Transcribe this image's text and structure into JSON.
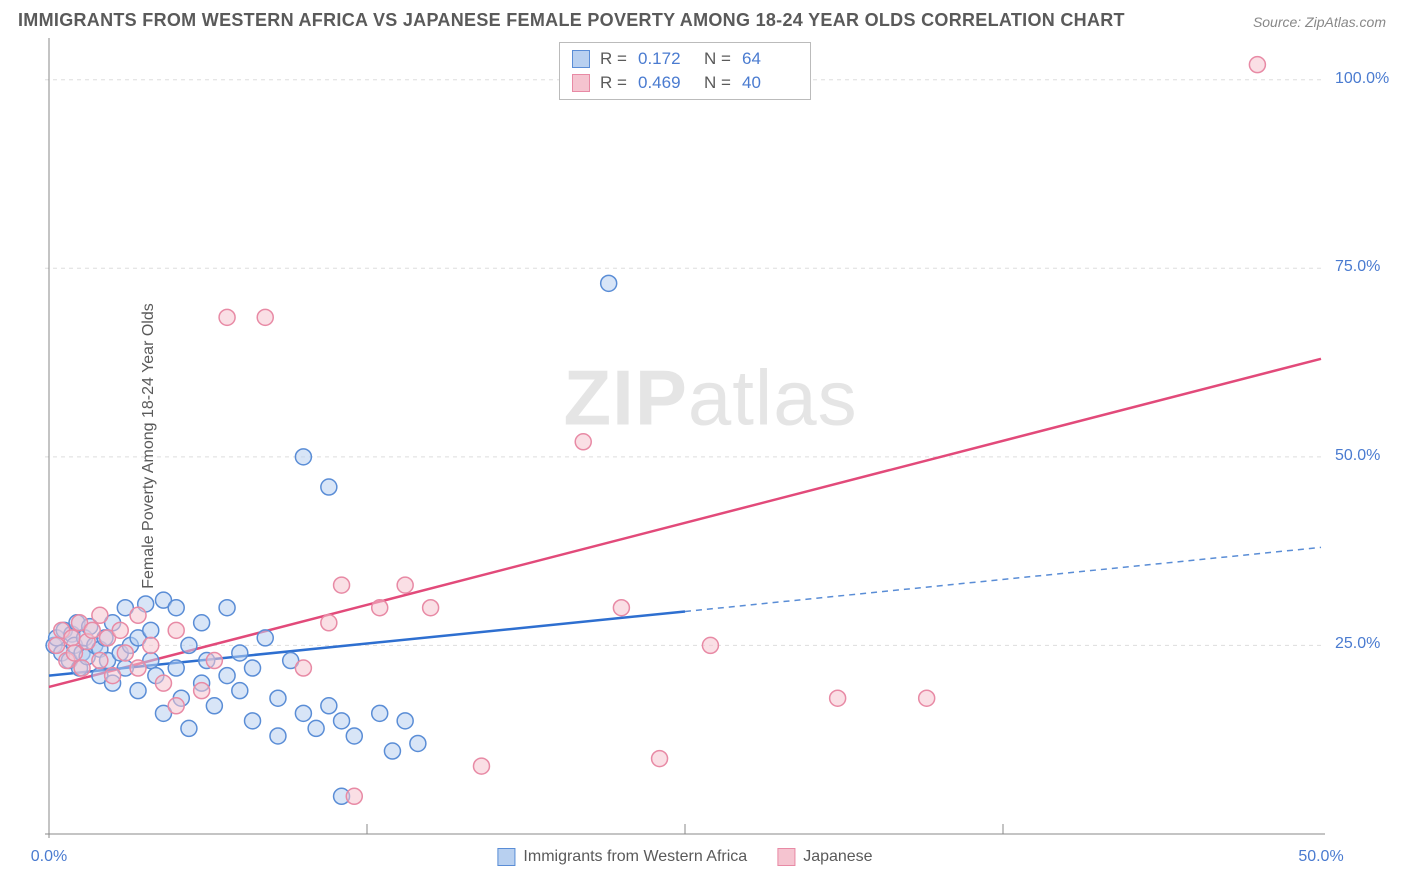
{
  "title": "IMMIGRANTS FROM WESTERN AFRICA VS JAPANESE FEMALE POVERTY AMONG 18-24 YEAR OLDS CORRELATION CHART",
  "source": "Source: ZipAtlas.com",
  "ylabel": "Female Poverty Among 18-24 Year Olds",
  "watermark_bold": "ZIP",
  "watermark_rest": "atlas",
  "chart": {
    "type": "scatter",
    "xlim": [
      0,
      50
    ],
    "ylim": [
      0,
      105
    ],
    "x_ticks": [
      0,
      50
    ],
    "x_tick_labels": [
      "0.0%",
      "50.0%"
    ],
    "y_ticks": [
      25,
      50,
      75,
      100
    ],
    "y_tick_labels": [
      "25.0%",
      "50.0%",
      "75.0%",
      "100.0%"
    ],
    "grid_color": "#dddddd",
    "axis_color": "#888888",
    "background_color": "#ffffff",
    "marker_radius": 8,
    "marker_stroke_width": 1.5,
    "series": [
      {
        "name": "Immigrants from Western Africa",
        "fill": "#b8d0f0",
        "stroke": "#5a8dd6",
        "fill_opacity": 0.55,
        "stats": {
          "R": "0.172",
          "N": "64"
        },
        "trend": {
          "x1": 0,
          "y1": 21,
          "x2": 25,
          "y2": 29.5,
          "x2_ext": 50,
          "y2_ext": 38,
          "solid_color": "#2e6fd0",
          "dash_color": "#5a8dd6",
          "width": 2.5
        },
        "points": [
          [
            0.2,
            25
          ],
          [
            0.3,
            26
          ],
          [
            0.5,
            24
          ],
          [
            0.6,
            27
          ],
          [
            0.8,
            23
          ],
          [
            0.9,
            26.5
          ],
          [
            1.0,
            25
          ],
          [
            1.1,
            28
          ],
          [
            1.2,
            22
          ],
          [
            1.3,
            24
          ],
          [
            1.4,
            26
          ],
          [
            1.5,
            23.5
          ],
          [
            1.6,
            27.5
          ],
          [
            1.8,
            25
          ],
          [
            2.0,
            24.5
          ],
          [
            2.0,
            21
          ],
          [
            2.2,
            26
          ],
          [
            2.3,
            23
          ],
          [
            2.5,
            28
          ],
          [
            2.5,
            20
          ],
          [
            2.8,
            24
          ],
          [
            3.0,
            30
          ],
          [
            3.0,
            22
          ],
          [
            3.2,
            25
          ],
          [
            3.5,
            26
          ],
          [
            3.5,
            19
          ],
          [
            3.8,
            30.5
          ],
          [
            4.0,
            23
          ],
          [
            4.0,
            27
          ],
          [
            4.2,
            21
          ],
          [
            4.5,
            31
          ],
          [
            4.5,
            16
          ],
          [
            5.0,
            22
          ],
          [
            5.0,
            30
          ],
          [
            5.2,
            18
          ],
          [
            5.5,
            25
          ],
          [
            5.5,
            14
          ],
          [
            6.0,
            28
          ],
          [
            6.0,
            20
          ],
          [
            6.2,
            23
          ],
          [
            6.5,
            17
          ],
          [
            7.0,
            21
          ],
          [
            7.0,
            30
          ],
          [
            7.5,
            19
          ],
          [
            7.5,
            24
          ],
          [
            8.0,
            15
          ],
          [
            8.0,
            22
          ],
          [
            8.5,
            26
          ],
          [
            9.0,
            18
          ],
          [
            9.0,
            13
          ],
          [
            9.5,
            23
          ],
          [
            10.0,
            50
          ],
          [
            10.0,
            16
          ],
          [
            10.5,
            14
          ],
          [
            11.0,
            46
          ],
          [
            11.0,
            17
          ],
          [
            11.5,
            15
          ],
          [
            12.0,
            13
          ],
          [
            13.0,
            16
          ],
          [
            13.5,
            11
          ],
          [
            14.0,
            15
          ],
          [
            14.5,
            12
          ],
          [
            11.5,
            5
          ],
          [
            22.0,
            73
          ]
        ]
      },
      {
        "name": "Japanese",
        "fill": "#f5c4d0",
        "stroke": "#e88aa5",
        "fill_opacity": 0.55,
        "stats": {
          "R": "0.469",
          "N": "40"
        },
        "trend": {
          "x1": 0,
          "y1": 19.5,
          "x2": 50,
          "y2": 63,
          "solid_color": "#e24a7a",
          "width": 2.5
        },
        "points": [
          [
            0.3,
            25
          ],
          [
            0.5,
            27
          ],
          [
            0.7,
            23
          ],
          [
            0.9,
            26
          ],
          [
            1.0,
            24
          ],
          [
            1.2,
            28
          ],
          [
            1.3,
            22
          ],
          [
            1.5,
            25.5
          ],
          [
            1.7,
            27
          ],
          [
            2.0,
            23
          ],
          [
            2.0,
            29
          ],
          [
            2.3,
            26
          ],
          [
            2.5,
            21
          ],
          [
            2.8,
            27
          ],
          [
            3.0,
            24
          ],
          [
            3.5,
            22
          ],
          [
            3.5,
            29
          ],
          [
            4.0,
            25
          ],
          [
            4.5,
            20
          ],
          [
            5.0,
            27
          ],
          [
            5.0,
            17
          ],
          [
            6.0,
            19
          ],
          [
            6.5,
            23
          ],
          [
            7.0,
            68.5
          ],
          [
            8.5,
            68.5
          ],
          [
            10.0,
            22
          ],
          [
            11.0,
            28
          ],
          [
            11.5,
            33
          ],
          [
            12.0,
            5
          ],
          [
            13.0,
            30
          ],
          [
            14.0,
            33
          ],
          [
            15.0,
            30
          ],
          [
            17.0,
            9
          ],
          [
            21.0,
            52
          ],
          [
            22.5,
            30
          ],
          [
            24.0,
            10
          ],
          [
            26.0,
            25
          ],
          [
            31.0,
            18
          ],
          [
            47.5,
            102
          ],
          [
            34.5,
            18
          ]
        ]
      }
    ]
  },
  "stats_legend": {
    "R_label": "R  =",
    "N_label": "N  ="
  },
  "x_legend": {
    "series1_label": "Immigrants from Western Africa",
    "series2_label": "Japanese"
  }
}
